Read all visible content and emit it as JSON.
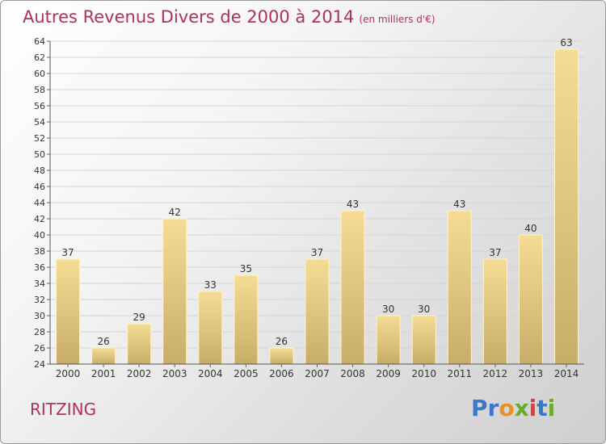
{
  "chart_data": {
    "type": "bar",
    "title": "Autres Revenus Divers de 2000 à 2014",
    "unit_note": "(en milliers d'€)",
    "categories": [
      "2000",
      "2001",
      "2002",
      "2003",
      "2004",
      "2005",
      "2006",
      "2007",
      "2008",
      "2009",
      "2010",
      "2011",
      "2012",
      "2013",
      "2014"
    ],
    "values": [
      37,
      26,
      29,
      42,
      33,
      35,
      26,
      37,
      43,
      30,
      30,
      43,
      37,
      40,
      63
    ],
    "ylim": [
      24,
      64
    ],
    "yticks": [
      24,
      26,
      28,
      30,
      32,
      34,
      36,
      38,
      40,
      42,
      44,
      46,
      48,
      50,
      52,
      54,
      56,
      58,
      60,
      62,
      64
    ],
    "grid": true,
    "bar_color_light": "#f5dc94",
    "bar_color_dark": "#c8ad68"
  },
  "footer": {
    "place": "RITZING",
    "logo": "Proxiti"
  }
}
